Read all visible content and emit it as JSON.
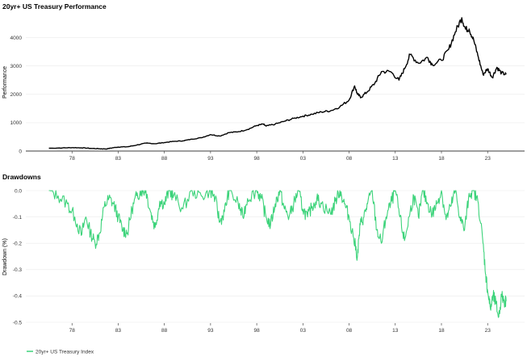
{
  "chart_data": [
    {
      "type": "line",
      "title": "20yr+ US Treasury Performance",
      "xlabel": "",
      "ylabel": "Performance",
      "xlim": [
        1973,
        2027
      ],
      "ylim": [
        0,
        4700
      ],
      "x_ticks": [
        "78",
        "83",
        "88",
        "93",
        "98",
        "03",
        "08",
        "13",
        "18",
        "23"
      ],
      "x_tick_values": [
        1978,
        1983,
        1988,
        1993,
        1998,
        2003,
        2008,
        2013,
        2018,
        2023
      ],
      "y_ticks": [
        "0",
        "1000",
        "2000",
        "3000",
        "4000"
      ],
      "y_tick_values": [
        0,
        1000,
        2000,
        3000,
        4000
      ],
      "grid": "horizontal",
      "color": "#000000",
      "series": [
        {
          "name": "20yr+ US Treasury Index",
          "x": [
            1975.5,
            1977,
            1978,
            1979,
            1980,
            1981,
            1981.7,
            1982.5,
            1983,
            1984,
            1985,
            1986,
            1987,
            1988,
            1989,
            1990,
            1991,
            1992,
            1993,
            1994,
            1995,
            1996,
            1997,
            1998,
            1998.7,
            1999,
            2000,
            2001,
            2002,
            2003,
            2004,
            2005,
            2006,
            2007,
            2008,
            2008.6,
            2008.9,
            2009.3,
            2010,
            2010.8,
            2011.5,
            2012.5,
            2013.4,
            2014,
            2014.6,
            2015.5,
            2016.5,
            2017,
            2018,
            2018.8,
            2019.5,
            2020.2,
            2020.6,
            2021,
            2021.5,
            2022,
            2022.5,
            2023,
            2023.5,
            2024,
            2024.5,
            2025
          ],
          "values": [
            100,
            110,
            120,
            115,
            95,
            80,
            75,
            120,
            140,
            150,
            210,
            280,
            260,
            300,
            340,
            360,
            420,
            470,
            580,
            530,
            650,
            680,
            760,
            900,
            950,
            880,
            950,
            1050,
            1150,
            1230,
            1300,
            1380,
            1420,
            1560,
            1800,
            2300,
            2000,
            1900,
            2100,
            2400,
            2800,
            2800,
            2500,
            2900,
            3400,
            3100,
            3300,
            3050,
            3200,
            3600,
            4200,
            4700,
            4300,
            4300,
            3900,
            3300,
            2700,
            2900,
            2600,
            2950,
            2750,
            2700
          ]
        }
      ]
    },
    {
      "type": "line",
      "title": "Drawdowns",
      "xlabel": "",
      "ylabel": "Drawdown (%)",
      "xlim": [
        1973,
        2027
      ],
      "ylim": [
        -0.5,
        0
      ],
      "x_ticks": [
        "78",
        "83",
        "88",
        "93",
        "98",
        "03",
        "08",
        "13",
        "18",
        "23"
      ],
      "x_tick_values": [
        1978,
        1983,
        1988,
        1993,
        1998,
        2003,
        2008,
        2013,
        2018,
        2023
      ],
      "y_ticks": [
        "0.0",
        "-0.1",
        "-0.2",
        "-0.3",
        "-0.4",
        "-0.5"
      ],
      "y_tick_values": [
        0,
        -0.1,
        -0.2,
        -0.3,
        -0.4,
        -0.5
      ],
      "grid": "horizontal",
      "legend": "bottom-left",
      "color": "#3cd37a",
      "series": [
        {
          "name": "20yr+ US Treasury Index",
          "x": [
            1975.5,
            1976.5,
            1977.5,
            1978.3,
            1979,
            1979.5,
            1980,
            1980.5,
            1981,
            1981.5,
            1982,
            1982.5,
            1983,
            1983.5,
            1984,
            1984.5,
            1985,
            1985.5,
            1986,
            1986.5,
            1987,
            1987.5,
            1988,
            1988.5,
            1989,
            1990,
            1991,
            1992,
            1993,
            1993.5,
            1994,
            1994.5,
            1995,
            1996,
            1996.5,
            1997,
            1998,
            1998.5,
            1999,
            1999.5,
            2000,
            2000.5,
            2001,
            2001.5,
            2002,
            2002.5,
            2003,
            2003.5,
            2004,
            2004.5,
            2005,
            2006,
            2006.5,
            2007,
            2007.5,
            2008,
            2008.5,
            2008.9,
            2009.2,
            2009.6,
            2010,
            2010.5,
            2011,
            2011.5,
            2012,
            2012.5,
            2013,
            2013.5,
            2014,
            2014.5,
            2015,
            2015.5,
            2016,
            2016.5,
            2017,
            2017.5,
            2018,
            2018.5,
            2019,
            2019.5,
            2020,
            2020.5,
            2021,
            2021.5,
            2022,
            2022.5,
            2022.8,
            2023,
            2023.3,
            2023.6,
            2023.9,
            2024.2,
            2024.5,
            2024.8,
            2025
          ],
          "values": [
            0,
            -0.02,
            -0.05,
            -0.1,
            -0.17,
            -0.1,
            -0.16,
            -0.2,
            -0.16,
            -0.06,
            -0.03,
            -0.05,
            -0.1,
            -0.15,
            -0.16,
            -0.07,
            -0.02,
            0,
            0,
            -0.08,
            -0.14,
            -0.04,
            -0.05,
            0,
            -0.02,
            -0.07,
            0,
            -0.02,
            0,
            -0.03,
            -0.12,
            -0.08,
            0,
            -0.05,
            -0.1,
            -0.03,
            0,
            -0.03,
            -0.1,
            -0.13,
            -0.05,
            0,
            -0.07,
            -0.1,
            -0.05,
            0,
            -0.07,
            -0.1,
            -0.06,
            -0.03,
            -0.05,
            -0.09,
            -0.04,
            0,
            -0.05,
            -0.1,
            -0.18,
            -0.25,
            -0.13,
            -0.1,
            -0.05,
            0,
            -0.15,
            -0.2,
            -0.1,
            -0.05,
            0,
            -0.1,
            -0.19,
            -0.1,
            -0.02,
            -0.1,
            0,
            -0.05,
            -0.09,
            -0.05,
            0,
            -0.11,
            -0.06,
            0,
            -0.1,
            -0.15,
            -0.01,
            0,
            -0.05,
            -0.2,
            -0.32,
            -0.38,
            -0.45,
            -0.4,
            -0.43,
            -0.48,
            -0.4,
            -0.42,
            -0.42
          ]
        }
      ]
    }
  ]
}
